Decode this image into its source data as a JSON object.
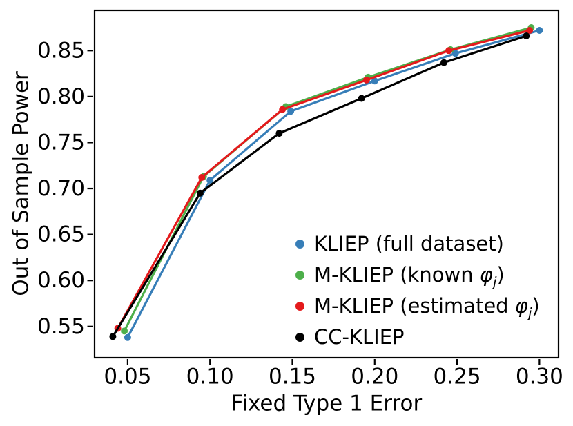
{
  "figure": {
    "background": "#ffffff",
    "text_color": "#000000"
  },
  "chart_data": {
    "type": "line",
    "title": "",
    "xlabel": "Fixed Type 1 Error",
    "ylabel": "Out of Sample Power",
    "xlim": [
      0.0295,
      0.312
    ],
    "ylim": [
      0.5153,
      0.8945
    ],
    "grid": false,
    "legend_position": "lower-right-inside",
    "xticks": {
      "values": [
        0.05,
        0.1,
        0.15,
        0.2,
        0.25,
        0.3
      ],
      "labels": [
        "0.05",
        "0.10",
        "0.15",
        "0.20",
        "0.25",
        "0.30"
      ]
    },
    "yticks": {
      "values": [
        0.55,
        0.6,
        0.65,
        0.7,
        0.75,
        0.8,
        0.85
      ],
      "labels": [
        "0.55",
        "0.60",
        "0.65",
        "0.70",
        "0.75",
        "0.80",
        "0.85"
      ]
    },
    "series": [
      {
        "id": "kliep-full",
        "name": "KLIEP (full dataset)",
        "color": "#377eb8",
        "marker": "circle",
        "x": [
          0.05,
          0.1,
          0.149,
          0.2,
          0.249,
          0.3
        ],
        "y": [
          0.538,
          0.709,
          0.784,
          0.817,
          0.847,
          0.872
        ]
      },
      {
        "id": "mkliep-known",
        "name": "M-KLIEP (known φj)",
        "color": "#4daf4a",
        "marker": "circle",
        "x": [
          0.048,
          0.096,
          0.146,
          0.196,
          0.246,
          0.295
        ],
        "y": [
          0.545,
          0.713,
          0.789,
          0.821,
          0.851,
          0.875
        ]
      },
      {
        "id": "mkliep-estimated",
        "name": "M-KLIEP (estimated φj)",
        "color": "#e41a1c",
        "marker": "circle",
        "x": [
          0.044,
          0.095,
          0.144,
          0.195,
          0.245,
          0.294
        ],
        "y": [
          0.548,
          0.712,
          0.786,
          0.818,
          0.85,
          0.872
        ]
      },
      {
        "id": "cc-kliep",
        "name": "CC-KLIEP",
        "color": "#000000",
        "marker": "circle",
        "x": [
          0.041,
          0.094,
          0.142,
          0.192,
          0.242,
          0.292
        ],
        "y": [
          0.539,
          0.695,
          0.76,
          0.798,
          0.837,
          0.866
        ]
      }
    ]
  },
  "legend": {
    "items": [
      {
        "series": "kliep-full",
        "color": "#377eb8",
        "parts": [
          {
            "t": "KLIEP (full dataset)"
          }
        ]
      },
      {
        "series": "mkliep-known",
        "color": "#4daf4a",
        "parts": [
          {
            "t": "M-KLIEP (known "
          },
          {
            "t": "φ",
            "italic": true
          },
          {
            "t": "j",
            "sub": true
          },
          {
            "t": ")"
          }
        ]
      },
      {
        "series": "mkliep-estimated",
        "color": "#e41a1c",
        "parts": [
          {
            "t": "M-KLIEP (estimated "
          },
          {
            "t": "φ",
            "italic": true
          },
          {
            "t": "j",
            "sub": true
          },
          {
            "t": ")"
          }
        ]
      },
      {
        "series": "cc-kliep",
        "color": "#000000",
        "parts": [
          {
            "t": "CC-KLIEP"
          }
        ]
      }
    ]
  }
}
